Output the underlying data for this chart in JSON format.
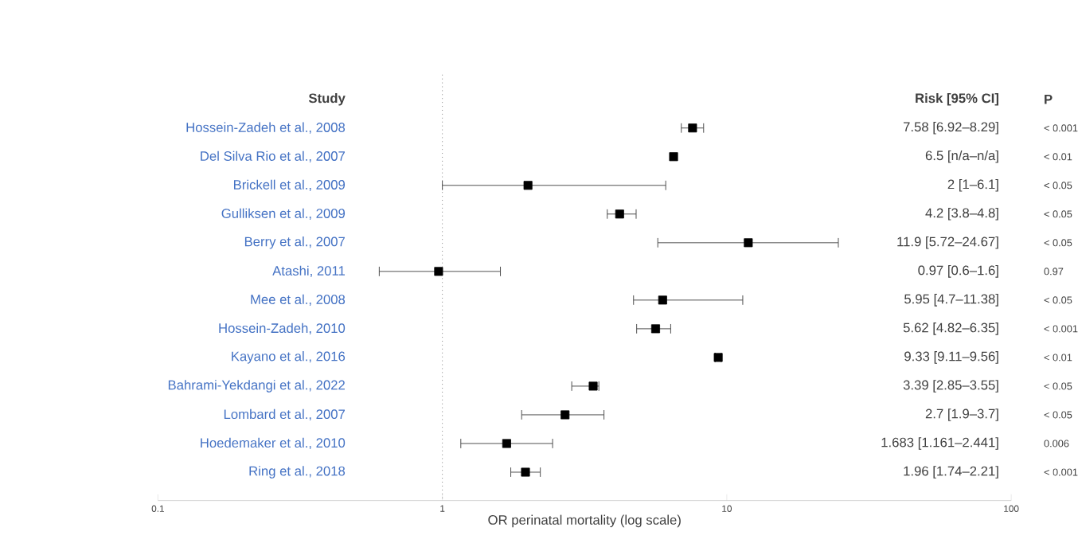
{
  "chart_data": {
    "type": "scatter",
    "orientation": "horizontal",
    "ylabel": "Study",
    "xlabel": "OR perinatal mortality (log scale)",
    "categories": [
      "Hossein-Zadeh et al., 2008",
      "Del Silva Rio et al., 2007",
      "Brickell et al., 2009",
      "Gulliksen et al., 2009",
      "Berry et al., 2007",
      "Atashi, 2011",
      "Mee et al., 2008",
      "Hossein-Zadeh, 2010",
      "Kayano et al., 2016",
      "Bahrami-Yekdangi et al., 2022",
      "Lombard et al., 2007",
      "Hoedemaker et al., 2010",
      "Ring et al., 2018"
    ],
    "values": [
      7.58,
      6.5,
      2,
      4.2,
      11.9,
      0.97,
      5.95,
      5.62,
      9.33,
      3.39,
      2.7,
      1.683,
      1.96
    ],
    "errors": [
      [
        6.92,
        8.29
      ],
      null,
      [
        1,
        6.1
      ],
      [
        3.8,
        4.8
      ],
      [
        5.72,
        24.67
      ],
      [
        0.6,
        1.6
      ],
      [
        4.7,
        11.38
      ],
      [
        4.82,
        6.35
      ],
      [
        9.11,
        9.56
      ],
      [
        2.85,
        3.55
      ],
      [
        1.9,
        3.7
      ],
      [
        1.161,
        2.441
      ],
      [
        1.74,
        2.21
      ]
    ],
    "annotations": [
      "Risk [95% CI]",
      "P",
      "7.58 [6.92–8.29]",
      "< 0.001",
      "6.5 [n/a–n/a]",
      "< 0.01",
      "2 [1–6.1]",
      "< 0.05",
      "4.2 [3.8–4.8]",
      "< 0.05",
      "11.9 [5.72–24.67]",
      "< 0.05",
      "0.97 [0.6–1.6]",
      "0.97",
      "5.95 [4.7–11.38]",
      "< 0.05",
      "5.62 [4.82–6.35]",
      "< 0.001",
      "9.33 [9.11–9.56]",
      "< 0.01",
      "3.39 [2.85–3.55]",
      "< 0.05",
      "2.7 [1.9–3.7]",
      "< 0.05",
      "1.683 [1.161–2.441]",
      "0.006",
      "1.96 [1.74–2.21]",
      "< 0.001"
    ],
    "log": "x",
    "xlim": [
      0.1,
      100
    ],
    "xticks": [
      0.1,
      1,
      10,
      100
    ],
    "ref_lines": [
      {
        "axis": "x",
        "value": 1,
        "line_style": "dotted",
        "color": "#808080"
      }
    ],
    "marker": "square",
    "color": "#000000",
    "grid": false
  }
}
